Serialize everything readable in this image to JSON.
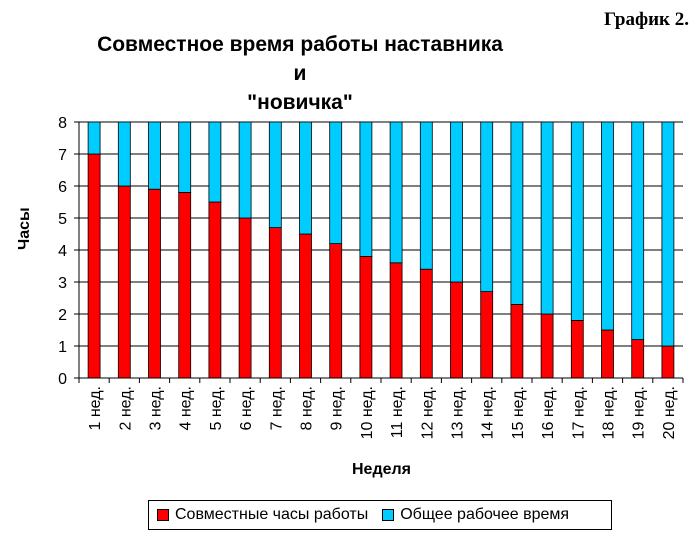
{
  "header": {
    "graph_label": "График 2.",
    "title_line1": "Совместное время работы наставника и",
    "title_line2": "\"новичка\""
  },
  "legend": {
    "items": [
      {
        "label": "Совместные часы работы",
        "color": "#ff0000"
      },
      {
        "label": "Общее рабочее время",
        "color": "#00ccff"
      }
    ]
  },
  "chart_data": {
    "type": "bar",
    "stacked": true,
    "xlabel": "Неделя",
    "ylabel": "Часы",
    "ylim": [
      0,
      8
    ],
    "yticks": [
      0,
      1,
      2,
      3,
      4,
      5,
      6,
      7,
      8
    ],
    "grid": true,
    "legend_position": "bottom",
    "categories": [
      "1 нед.",
      "2 нед.",
      "3 нед.",
      "4 нед.",
      "5 нед.",
      "6 нед.",
      "7 нед.",
      "8 нед.",
      "9 нед.",
      "10 нед.",
      "11 нед.",
      "12 нед.",
      "13 нед.",
      "14 нед.",
      "15 нед.",
      "16 нед.",
      "17 нед.",
      "18 нед.",
      "19 нед.",
      "20 нед."
    ],
    "series": [
      {
        "name": "Совместные часы работы",
        "color": "#ff0000",
        "values": [
          7.0,
          6.0,
          5.9,
          5.8,
          5.5,
          5.0,
          4.7,
          4.5,
          4.2,
          3.8,
          3.6,
          3.4,
          3.0,
          2.7,
          2.3,
          2.0,
          1.8,
          1.5,
          1.2,
          1.0
        ]
      },
      {
        "name": "Общее рабочее время",
        "color": "#00ccff",
        "values": [
          1.0,
          2.0,
          2.1,
          2.2,
          2.5,
          3.0,
          3.3,
          3.5,
          3.8,
          4.2,
          4.4,
          4.6,
          5.0,
          5.3,
          5.7,
          6.0,
          6.2,
          6.5,
          6.8,
          7.0
        ]
      }
    ]
  }
}
